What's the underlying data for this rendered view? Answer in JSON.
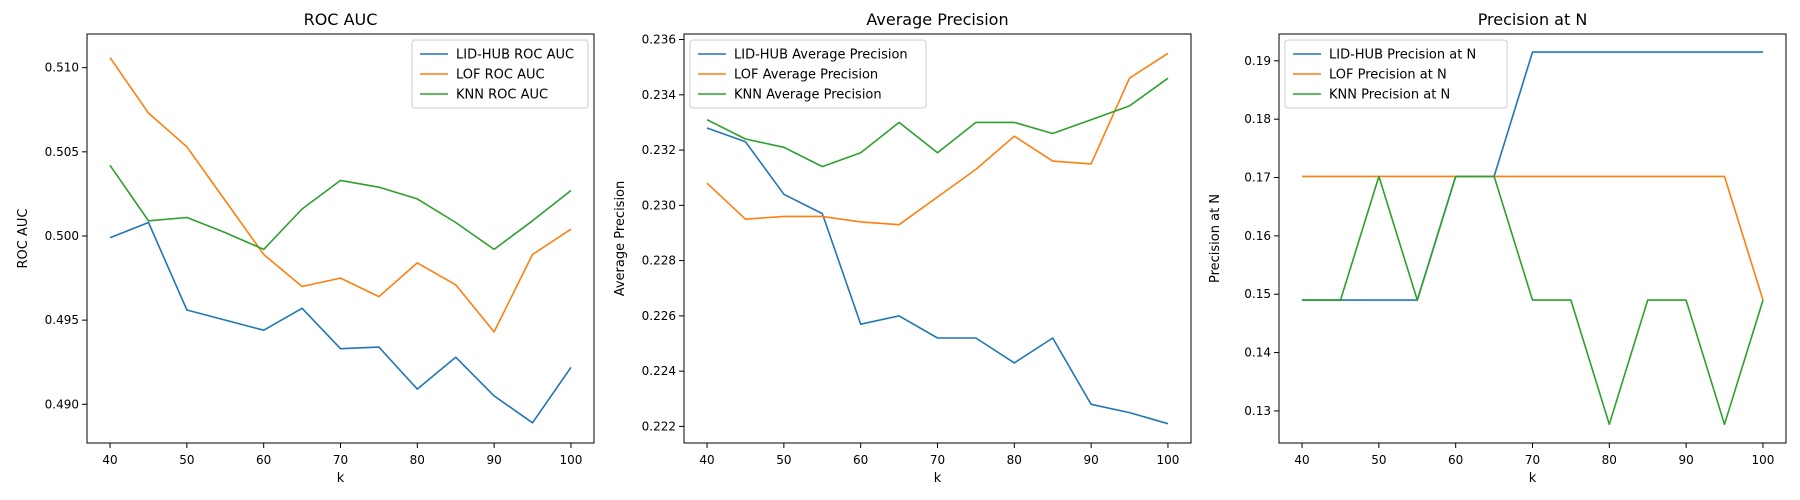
{
  "chart_data": [
    {
      "type": "line",
      "title": "ROC AUC",
      "xlabel": "k",
      "ylabel": "ROC AUC",
      "xlim": [
        37,
        103
      ],
      "ylim": [
        0.4877,
        0.512
      ],
      "xticks": [
        40,
        50,
        60,
        70,
        80,
        90,
        100
      ],
      "yticks": [
        0.49,
        0.495,
        0.5,
        0.505,
        0.51
      ],
      "ytick_labels": [
        "0.490",
        "0.495",
        "0.500",
        "0.505",
        "0.510"
      ],
      "legend": "top-right",
      "grid": false,
      "x": [
        40,
        45,
        50,
        55,
        60,
        65,
        70,
        75,
        80,
        85,
        90,
        95,
        100
      ],
      "series": [
        {
          "name": "LID-HUB ROC AUC",
          "color": "#1f77b4",
          "values": [
            0.4999,
            0.5008,
            0.4956,
            0.495,
            0.4944,
            0.4957,
            0.4933,
            0.4934,
            0.4909,
            0.4928,
            0.4905,
            0.4889,
            0.4922
          ]
        },
        {
          "name": "LOF ROC AUC",
          "color": "#ff7f0e",
          "values": [
            0.5106,
            0.5073,
            0.5053,
            0.5021,
            0.4989,
            0.497,
            0.4975,
            0.4964,
            0.4984,
            0.4971,
            0.4943,
            0.4989,
            0.5004
          ]
        },
        {
          "name": "KNN ROC AUC",
          "color": "#2ca02c",
          "values": [
            0.5042,
            0.5009,
            0.5011,
            0.5002,
            0.4992,
            0.5016,
            0.5033,
            0.5029,
            0.5022,
            0.5008,
            0.4992,
            0.5009,
            0.5027
          ]
        }
      ]
    },
    {
      "type": "line",
      "title": "Average Precision",
      "xlabel": "k",
      "ylabel": "Average Precision",
      "xlim": [
        37,
        103
      ],
      "ylim": [
        0.2214,
        0.2362
      ],
      "xticks": [
        40,
        50,
        60,
        70,
        80,
        90,
        100
      ],
      "yticks": [
        0.222,
        0.224,
        0.226,
        0.228,
        0.23,
        0.232,
        0.234,
        0.236
      ],
      "ytick_labels": [
        "0.222",
        "0.224",
        "0.226",
        "0.228",
        "0.230",
        "0.232",
        "0.234",
        "0.236"
      ],
      "legend": "top-left",
      "grid": false,
      "x": [
        40,
        45,
        50,
        55,
        60,
        65,
        70,
        75,
        80,
        85,
        90,
        95,
        100
      ],
      "series": [
        {
          "name": "LID-HUB Average Precision",
          "color": "#1f77b4",
          "values": [
            0.2328,
            0.2323,
            0.2304,
            0.2297,
            0.2257,
            0.226,
            0.2252,
            0.2252,
            0.2243,
            0.2252,
            0.2228,
            0.2225,
            0.2221
          ]
        },
        {
          "name": "LOF Average Precision",
          "color": "#ff7f0e",
          "values": [
            0.2308,
            0.2295,
            0.2296,
            0.2296,
            0.2294,
            0.2293,
            0.2303,
            0.2313,
            0.2325,
            0.2316,
            0.2315,
            0.2346,
            0.2355
          ]
        },
        {
          "name": "KNN Average Precision",
          "color": "#2ca02c",
          "values": [
            0.2331,
            0.2324,
            0.2321,
            0.2314,
            0.2319,
            0.233,
            0.2319,
            0.233,
            0.233,
            0.2326,
            0.2331,
            0.2336,
            0.2346
          ]
        }
      ]
    },
    {
      "type": "line",
      "title": "Precision at N",
      "xlabel": "k",
      "ylabel": "Precision at N",
      "xlim": [
        37,
        103
      ],
      "ylim": [
        0.1245,
        0.1946
      ],
      "xticks": [
        40,
        50,
        60,
        70,
        80,
        90,
        100
      ],
      "yticks": [
        0.13,
        0.14,
        0.15,
        0.16,
        0.17,
        0.18,
        0.19
      ],
      "ytick_labels": [
        "0.13",
        "0.14",
        "0.15",
        "0.16",
        "0.17",
        "0.18",
        "0.19"
      ],
      "legend": "top-left",
      "grid": false,
      "x": [
        40,
        45,
        50,
        55,
        60,
        65,
        70,
        75,
        80,
        85,
        90,
        95,
        100
      ],
      "series": [
        {
          "name": "LID-HUB Precision at N",
          "color": "#1f77b4",
          "values": [
            0.149,
            0.149,
            0.149,
            0.149,
            0.1702,
            0.1702,
            0.1915,
            0.1915,
            0.1915,
            0.1915,
            0.1915,
            0.1915,
            0.1915
          ]
        },
        {
          "name": "LOF Precision at N",
          "color": "#ff7f0e",
          "values": [
            0.1702,
            0.1702,
            0.1702,
            0.1702,
            0.1702,
            0.1702,
            0.1702,
            0.1702,
            0.1702,
            0.1702,
            0.1702,
            0.1702,
            0.149
          ]
        },
        {
          "name": "KNN Precision at N",
          "color": "#2ca02c",
          "values": [
            0.149,
            0.149,
            0.1702,
            0.149,
            0.1702,
            0.1702,
            0.149,
            0.149,
            0.1277,
            0.149,
            0.149,
            0.1277,
            0.149
          ]
        }
      ]
    }
  ]
}
